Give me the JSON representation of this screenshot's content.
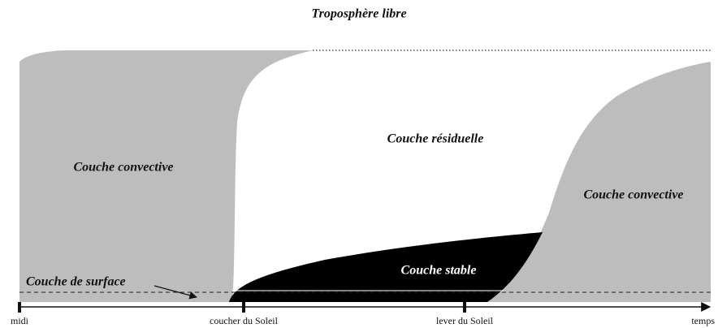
{
  "title": "Troposphère libre",
  "regions": [
    {
      "label": "Couche convective"
    },
    {
      "label": "Couche résiduelle"
    },
    {
      "label": "Couche convective"
    },
    {
      "label": "Couche stable"
    },
    {
      "label": "Couche de surface"
    }
  ],
  "axis": {
    "ticks": [
      "midi",
      "coucher du Soleil",
      "lever du Soleil"
    ],
    "label": "temps"
  }
}
